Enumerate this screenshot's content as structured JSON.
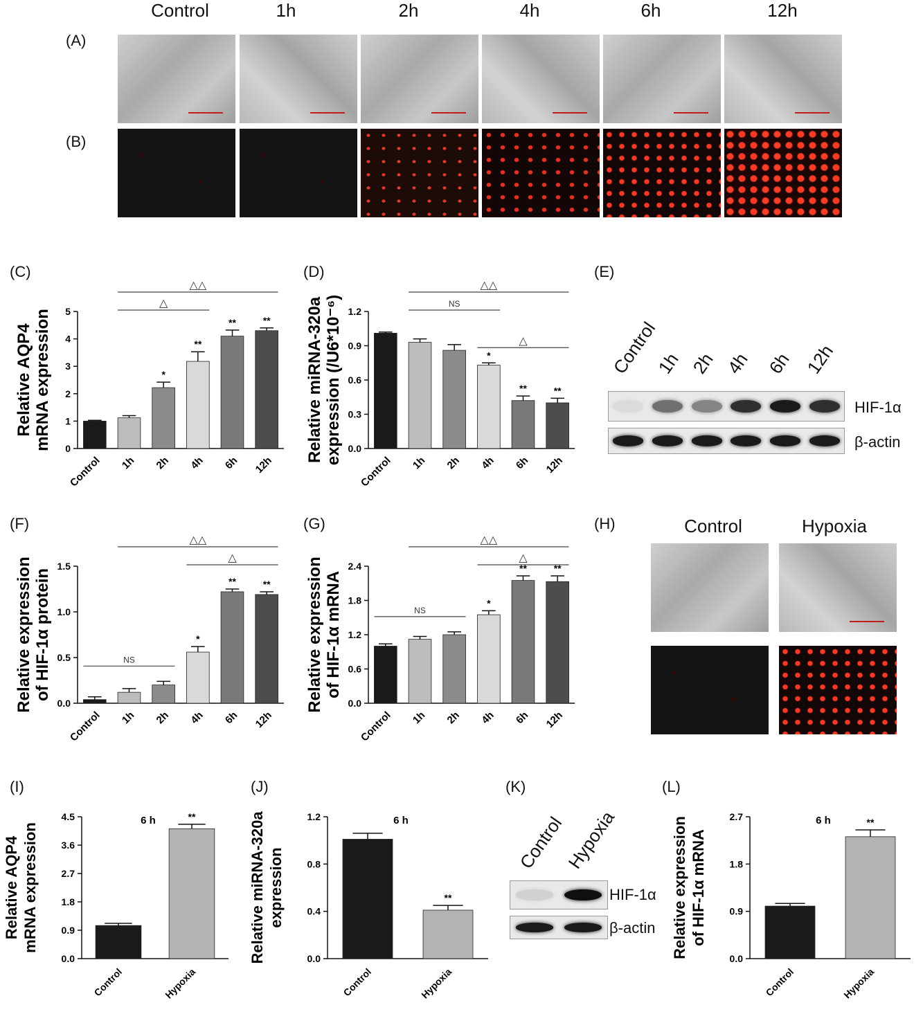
{
  "panel_labels": {
    "A": "(A)",
    "B": "(B)",
    "C": "(C)",
    "D": "(D)",
    "E": "(E)",
    "F": "(F)",
    "G": "(G)",
    "H": "(H)",
    "I": "(I)",
    "J": "(J)",
    "K": "(K)",
    "L": "(L)"
  },
  "top_columns": [
    "Control",
    "1h",
    "2h",
    "4h",
    "6h",
    "12h"
  ],
  "h_columns": [
    "Control",
    "Hypoxia"
  ],
  "blot_E": {
    "lanes": [
      "Control",
      "1h",
      "2h",
      "4h",
      "6h",
      "12h"
    ],
    "rows": [
      "HIF-1α",
      "β-actin"
    ],
    "hif_intensity": [
      0.05,
      0.55,
      0.45,
      0.85,
      0.95,
      0.85
    ]
  },
  "blot_K": {
    "lanes": [
      "Control",
      "Hypoxia"
    ],
    "rows": [
      "HIF-1α",
      "β-actin"
    ],
    "hif_intensity": [
      0.1,
      1.0
    ]
  },
  "chart_data": [
    {
      "id": "C",
      "type": "bar",
      "categories": [
        "Control",
        "1h",
        "2h",
        "4h",
        "6h",
        "12h"
      ],
      "values": [
        1.0,
        1.12,
        2.22,
        3.18,
        4.1,
        4.3
      ],
      "errors": [
        0.03,
        0.08,
        0.2,
        0.35,
        0.22,
        0.1
      ],
      "ylabel": [
        "Relative AQP4",
        "mRNA expression"
      ],
      "ylim": [
        0,
        5
      ],
      "yticks": [
        0,
        1,
        2,
        3,
        4,
        5
      ],
      "colors": [
        "#1a1a1a",
        "#bdbdbd",
        "#8c8c8c",
        "#d9d9d9",
        "#7a7a7a",
        "#4d4d4d"
      ],
      "sig": [
        "",
        "",
        "*",
        "**",
        "**",
        "**"
      ],
      "brackets": [
        {
          "from": 1,
          "to": 3,
          "label": "△",
          "level": 0
        },
        {
          "from": 1,
          "to": 5,
          "label": "△△",
          "level": 1
        }
      ]
    },
    {
      "id": "D",
      "type": "bar",
      "categories": [
        "Control",
        "1h",
        "2h",
        "4h",
        "6h",
        "12h"
      ],
      "values": [
        1.01,
        0.93,
        0.86,
        0.73,
        0.42,
        0.4
      ],
      "errors": [
        0.01,
        0.03,
        0.05,
        0.02,
        0.04,
        0.04
      ],
      "ylabel": [
        "Relative  miRNA-320a",
        "expression (/U6*10⁻⁶)"
      ],
      "ylim": [
        0,
        1.2
      ],
      "yticks": [
        0.0,
        0.3,
        0.6,
        0.9,
        1.2
      ],
      "colors": [
        "#1a1a1a",
        "#bdbdbd",
        "#8c8c8c",
        "#d9d9d9",
        "#7a7a7a",
        "#4d4d4d"
      ],
      "sig": [
        "",
        "",
        "",
        "*",
        "**",
        "**"
      ],
      "brackets": [
        {
          "from": 1,
          "to": 3,
          "label": "NS",
          "level": 0
        },
        {
          "from": 3,
          "to": 5,
          "label": "△",
          "level": -1
        },
        {
          "from": 1,
          "to": 5,
          "label": "△△",
          "level": 1
        }
      ]
    },
    {
      "id": "F",
      "type": "bar",
      "categories": [
        "Control",
        "1h",
        "2h",
        "4h",
        "6h",
        "12h"
      ],
      "values": [
        0.04,
        0.12,
        0.2,
        0.56,
        1.22,
        1.19
      ],
      "errors": [
        0.03,
        0.04,
        0.04,
        0.06,
        0.03,
        0.03
      ],
      "ylabel": [
        "Relative expression",
        "of HIF-1α protein"
      ],
      "ylim": [
        0,
        1.5
      ],
      "yticks": [
        0.0,
        0.5,
        1.0,
        1.5
      ],
      "colors": [
        "#1a1a1a",
        "#bdbdbd",
        "#8c8c8c",
        "#d9d9d9",
        "#7a7a7a",
        "#4d4d4d"
      ],
      "sig": [
        "",
        "",
        "",
        "*",
        "**",
        "**"
      ],
      "brackets": [
        {
          "from": 0,
          "to": 2,
          "label": "NS",
          "level": -3
        },
        {
          "from": 3,
          "to": 5,
          "label": "△",
          "level": 0
        },
        {
          "from": 1,
          "to": 5,
          "label": "△△",
          "level": 1
        }
      ]
    },
    {
      "id": "G",
      "type": "bar",
      "categories": [
        "Control",
        "1h",
        "2h",
        "4h",
        "6h",
        "12h"
      ],
      "values": [
        1.0,
        1.12,
        1.2,
        1.55,
        2.15,
        2.13
      ],
      "errors": [
        0.04,
        0.05,
        0.05,
        0.07,
        0.08,
        0.1
      ],
      "ylabel": [
        "Relative expression",
        "of HIF-1α mRNA"
      ],
      "ylim": [
        0,
        2.4
      ],
      "yticks": [
        0.0,
        0.6,
        1.2,
        1.8,
        2.4
      ],
      "colors": [
        "#1a1a1a",
        "#bdbdbd",
        "#8c8c8c",
        "#d9d9d9",
        "#7a7a7a",
        "#4d4d4d"
      ],
      "sig": [
        "",
        "",
        "",
        "*",
        "**",
        "**"
      ],
      "brackets": [
        {
          "from": 0,
          "to": 2,
          "label": "NS",
          "level": -2
        },
        {
          "from": 3,
          "to": 5,
          "label": "△",
          "level": 0
        },
        {
          "from": 1,
          "to": 5,
          "label": "△△",
          "level": 1
        }
      ]
    },
    {
      "id": "I",
      "type": "bar",
      "categories": [
        "Control",
        "Hypoxia"
      ],
      "values": [
        1.05,
        4.12
      ],
      "errors": [
        0.07,
        0.14
      ],
      "ylabel": [
        "Relative AQP4",
        "mRNA expression"
      ],
      "ylim": [
        0,
        4.5
      ],
      "yticks": [
        0.0,
        0.9,
        1.8,
        2.7,
        3.6,
        4.5
      ],
      "colors": [
        "#1a1a1a",
        "#b3b3b3"
      ],
      "sig": [
        "",
        "**"
      ],
      "annotation": "6 h",
      "brackets": []
    },
    {
      "id": "J",
      "type": "bar",
      "categories": [
        "Control",
        "Hypoxia"
      ],
      "values": [
        1.01,
        0.41
      ],
      "errors": [
        0.05,
        0.04
      ],
      "ylabel": [
        "Relative miRNA-320a",
        "expression"
      ],
      "ylim": [
        0,
        1.2
      ],
      "yticks": [
        0.0,
        0.4,
        0.8,
        1.2
      ],
      "colors": [
        "#1a1a1a",
        "#b3b3b3"
      ],
      "sig": [
        "",
        "**"
      ],
      "annotation": "6 h",
      "brackets": []
    },
    {
      "id": "L",
      "type": "bar",
      "categories": [
        "Control",
        "Hypoxia"
      ],
      "values": [
        1.0,
        2.32
      ],
      "errors": [
        0.05,
        0.13
      ],
      "ylabel": [
        "Relative expression",
        "of HIF-1α  mRNA"
      ],
      "ylim": [
        0,
        2.7
      ],
      "yticks": [
        0.0,
        0.9,
        1.8,
        2.7
      ],
      "colors": [
        "#1a1a1a",
        "#b3b3b3"
      ],
      "sig": [
        "",
        "**"
      ],
      "annotation": "6 h",
      "brackets": []
    }
  ]
}
